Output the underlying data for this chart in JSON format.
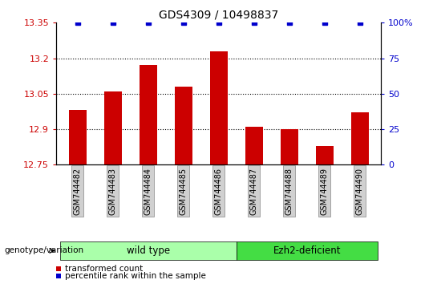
{
  "title": "GDS4309 / 10498837",
  "samples": [
    "GSM744482",
    "GSM744483",
    "GSM744484",
    "GSM744485",
    "GSM744486",
    "GSM744487",
    "GSM744488",
    "GSM744489",
    "GSM744490"
  ],
  "transformed_count": [
    12.98,
    13.06,
    13.17,
    13.08,
    13.23,
    12.91,
    12.9,
    12.83,
    12.97
  ],
  "percentile_rank": [
    100,
    100,
    100,
    100,
    100,
    100,
    100,
    100,
    100
  ],
  "ylim_left": [
    12.75,
    13.35
  ],
  "ylim_right": [
    0,
    100
  ],
  "yticks_left": [
    12.75,
    12.9,
    13.05,
    13.2,
    13.35
  ],
  "yticks_right": [
    0,
    25,
    50,
    75,
    100
  ],
  "ytick_labels_left": [
    "12.75",
    "12.9",
    "13.05",
    "13.2",
    "13.35"
  ],
  "ytick_labels_right": [
    "0",
    "25",
    "50",
    "75",
    "100%"
  ],
  "hlines": [
    12.9,
    13.05,
    13.2
  ],
  "groups": [
    {
      "label": "wild type",
      "start": 0,
      "end": 4,
      "color": "#aaffaa"
    },
    {
      "label": "Ezh2-deficient",
      "start": 5,
      "end": 8,
      "color": "#44dd44"
    }
  ],
  "bar_color": "#CC0000",
  "dot_color": "#0000CC",
  "bar_width": 0.5,
  "legend_label_bar": "transformed count",
  "legend_label_dot": "percentile rank within the sample",
  "genotype_label": "genotype/variation",
  "tick_color_left": "#CC0000",
  "tick_color_right": "#0000CC",
  "title_color": "#000000"
}
